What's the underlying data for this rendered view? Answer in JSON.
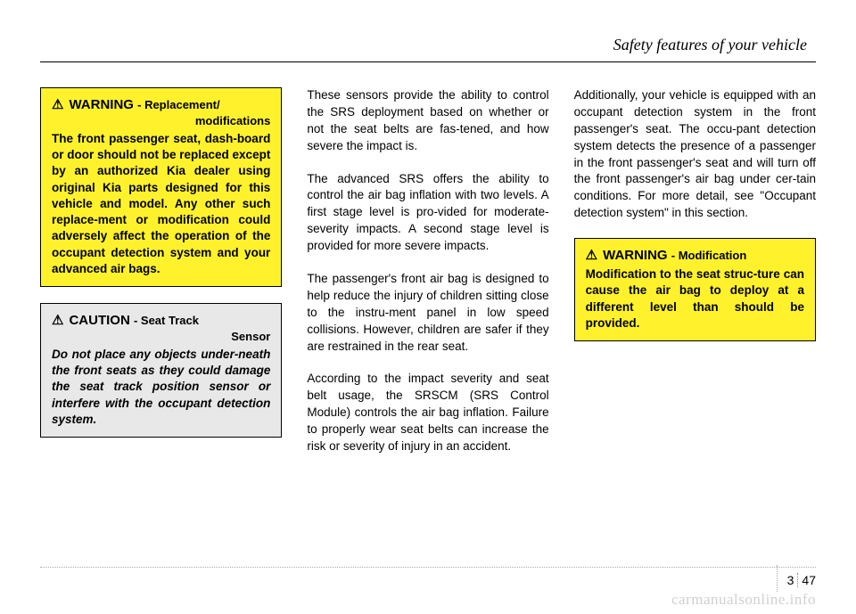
{
  "header": {
    "title": "Safety features of your vehicle"
  },
  "col1": {
    "warning1": {
      "icon": "⚠",
      "label": "WARNING",
      "sub": "- Replacement/",
      "sub2": "modifications",
      "body": "The front passenger seat, dash-board or door should not be replaced except by an authorized Kia dealer using original Kia parts designed for this vehicle and model. Any other such replace-ment or modification could adversely affect the operation of the occupant detection system and your advanced air bags."
    },
    "caution1": {
      "icon": "⚠",
      "label": "CAUTION",
      "sub": "- Seat Track",
      "sub2": "Sensor",
      "body": "Do not place any objects under-neath the front seats as they could damage the seat track position sensor or interfere with the occupant detection system."
    }
  },
  "col2": {
    "p1": "These sensors provide the ability to control the SRS deployment based on whether or not the seat belts are fas-tened, and how severe the impact is.",
    "p2": "The advanced SRS offers the ability to control the air bag inflation with two levels. A first stage level is pro-vided for moderate-severity impacts. A second stage level is provided for more severe impacts.",
    "p3": "The passenger's front air bag is designed to help reduce the injury of children sitting close to the instru-ment panel in low speed collisions. However, children are safer if they are restrained in the rear seat.",
    "p4": "According to the impact severity and seat belt usage, the SRSCM (SRS Control Module) controls the air bag inflation. Failure to properly wear seat belts can increase the risk or severity of injury in an accident."
  },
  "col3": {
    "p1": "Additionally, your vehicle is equipped with an occupant detection system in the front passenger's seat. The occu-pant detection system detects the presence of a passenger in the front passenger's seat and will turn off the front passenger's air bag under cer-tain conditions. For more detail, see \"Occupant detection system\" in this section.",
    "warning2": {
      "icon": "⚠",
      "label": "WARNING",
      "sub": "- Modification",
      "body": "Modification to the seat struc-ture can cause the air bag to deploy at a different level than should be provided."
    }
  },
  "pagenum": {
    "section": "3",
    "page": "47"
  },
  "watermark": "carmanualsonline.info"
}
